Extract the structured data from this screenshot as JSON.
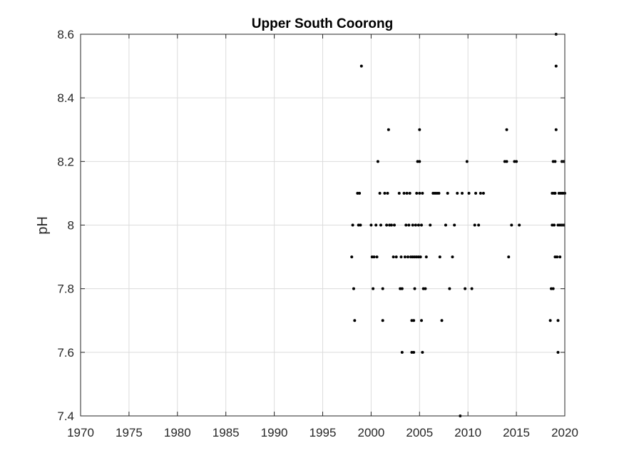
{
  "chart_data": {
    "type": "scatter",
    "title": "Upper South Coorong",
    "xlabel": "",
    "ylabel": "pH",
    "xlim": [
      1970,
      2020
    ],
    "ylim": [
      7.4,
      8.6
    ],
    "grid": true,
    "marker_color": "#000000",
    "x_ticks": [
      "1970",
      "1975",
      "1980",
      "1985",
      "1990",
      "1995",
      "2000",
      "2005",
      "2010",
      "2015",
      "2020"
    ],
    "y_ticks": [
      "7.4",
      "7.6",
      "7.8",
      "8",
      "8.2",
      "8.4",
      "8.6"
    ],
    "series": [
      {
        "points": [
          [
            1998.0,
            7.9
          ],
          [
            1998.1,
            8.0
          ],
          [
            1998.2,
            7.8
          ],
          [
            1998.3,
            7.7
          ],
          [
            1998.6,
            8.1
          ],
          [
            1998.7,
            8.0
          ],
          [
            1998.8,
            8.1
          ],
          [
            1998.9,
            8.0
          ],
          [
            1999.0,
            8.5
          ],
          [
            2000.0,
            8.0
          ],
          [
            2000.1,
            7.9
          ],
          [
            2000.3,
            7.9
          ],
          [
            2000.2,
            7.8
          ],
          [
            2000.5,
            8.0
          ],
          [
            2000.6,
            7.9
          ],
          [
            2000.7,
            8.2
          ],
          [
            2000.9,
            8.1
          ],
          [
            2001.0,
            8.0
          ],
          [
            2001.2,
            7.8
          ],
          [
            2001.2,
            7.7
          ],
          [
            2001.4,
            8.1
          ],
          [
            2001.6,
            8.0
          ],
          [
            2001.7,
            8.1
          ],
          [
            2001.8,
            8.3
          ],
          [
            2001.9,
            8.0
          ],
          [
            2002.1,
            8.0
          ],
          [
            2002.3,
            7.9
          ],
          [
            2002.4,
            8.0
          ],
          [
            2002.6,
            7.9
          ],
          [
            2002.9,
            8.1
          ],
          [
            2003.0,
            7.8
          ],
          [
            2003.1,
            7.9
          ],
          [
            2003.2,
            7.8
          ],
          [
            2003.2,
            7.6
          ],
          [
            2003.4,
            8.1
          ],
          [
            2003.5,
            7.9
          ],
          [
            2003.6,
            8.0
          ],
          [
            2003.7,
            8.1
          ],
          [
            2003.8,
            7.9
          ],
          [
            2003.9,
            8.0
          ],
          [
            2004.0,
            8.1
          ],
          [
            2004.1,
            7.9
          ],
          [
            2004.2,
            7.6
          ],
          [
            2004.2,
            7.7
          ],
          [
            2004.3,
            7.9
          ],
          [
            2004.3,
            8.0
          ],
          [
            2004.4,
            7.7
          ],
          [
            2004.4,
            7.6
          ],
          [
            2004.5,
            7.8
          ],
          [
            2004.5,
            7.9
          ],
          [
            2004.6,
            8.0
          ],
          [
            2004.7,
            8.1
          ],
          [
            2004.7,
            7.9
          ],
          [
            2004.8,
            8.2
          ],
          [
            2004.9,
            8.0
          ],
          [
            2004.9,
            7.9
          ],
          [
            2005.0,
            8.3
          ],
          [
            2005.0,
            8.2
          ],
          [
            2005.0,
            8.1
          ],
          [
            2005.1,
            7.9
          ],
          [
            2005.2,
            8.0
          ],
          [
            2005.2,
            7.7
          ],
          [
            2005.3,
            8.1
          ],
          [
            2005.3,
            7.6
          ],
          [
            2005.4,
            7.8
          ],
          [
            2005.6,
            7.8
          ],
          [
            2005.7,
            7.9
          ],
          [
            2006.1,
            8.0
          ],
          [
            2006.4,
            8.1
          ],
          [
            2006.6,
            8.1
          ],
          [
            2006.8,
            8.1
          ],
          [
            2007.0,
            8.1
          ],
          [
            2007.1,
            7.9
          ],
          [
            2007.3,
            7.7
          ],
          [
            2007.7,
            8.0
          ],
          [
            2007.9,
            8.1
          ],
          [
            2008.1,
            7.8
          ],
          [
            2008.4,
            7.9
          ],
          [
            2008.6,
            8.0
          ],
          [
            2008.9,
            8.1
          ],
          [
            2009.2,
            7.4
          ],
          [
            2009.4,
            8.1
          ],
          [
            2009.7,
            7.8
          ],
          [
            2009.9,
            8.2
          ],
          [
            2010.1,
            8.1
          ],
          [
            2010.4,
            7.8
          ],
          [
            2010.7,
            8.0
          ],
          [
            2010.8,
            8.1
          ],
          [
            2011.1,
            8.0
          ],
          [
            2011.3,
            8.1
          ],
          [
            2011.6,
            8.1
          ],
          [
            2013.8,
            8.2
          ],
          [
            2014.0,
            8.3
          ],
          [
            2014.0,
            8.2
          ],
          [
            2014.2,
            7.9
          ],
          [
            2014.5,
            8.0
          ],
          [
            2014.8,
            8.2
          ],
          [
            2015.0,
            8.2
          ],
          [
            2015.3,
            8.0
          ],
          [
            2018.5,
            7.7
          ],
          [
            2018.6,
            7.8
          ],
          [
            2018.7,
            8.1
          ],
          [
            2018.7,
            8.0
          ],
          [
            2018.8,
            8.2
          ],
          [
            2018.8,
            7.8
          ],
          [
            2018.9,
            8.1
          ],
          [
            2018.9,
            8.0
          ],
          [
            2019.0,
            8.2
          ],
          [
            2019.0,
            8.1
          ],
          [
            2019.0,
            7.9
          ],
          [
            2019.1,
            8.6
          ],
          [
            2019.1,
            8.5
          ],
          [
            2019.1,
            8.3
          ],
          [
            2019.2,
            7.9
          ],
          [
            2019.3,
            7.7
          ],
          [
            2019.3,
            7.6
          ],
          [
            2019.3,
            8.0
          ],
          [
            2019.4,
            8.1
          ],
          [
            2019.5,
            7.9
          ],
          [
            2019.5,
            8.0
          ],
          [
            2019.6,
            8.1
          ],
          [
            2019.7,
            8.2
          ],
          [
            2019.7,
            8.0
          ],
          [
            2019.8,
            8.1
          ],
          [
            2019.9,
            8.2
          ],
          [
            2019.9,
            8.0
          ],
          [
            2020.0,
            8.1
          ]
        ]
      }
    ]
  }
}
